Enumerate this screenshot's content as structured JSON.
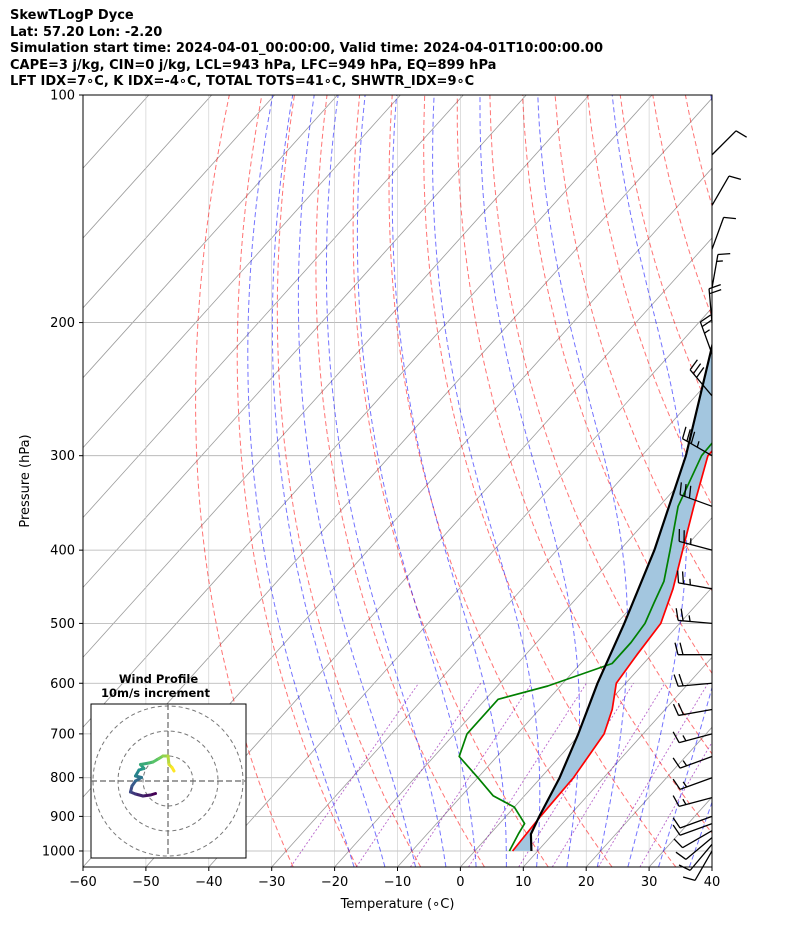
{
  "title": {
    "line1": "SkewTLogP Dyce",
    "line2": "Lat: 57.20   Lon: -2.20",
    "line3": "Simulation start time: 2024-04-01_00:00:00, Valid time: 2024-04-01T10:00:00.00",
    "line4": "CAPE=3 j/kg, CIN=0 j/kg, LCL=943 hPa, LFC=949 hPa, EQ=899 hPa",
    "line5": "LFT IDX=7∘C, K IDX=-4∘C, TOTAL TOTS=41∘C, SHWTR_IDX=9∘C"
  },
  "chart_data": {
    "type": "line",
    "subtype": "skew-T log-P",
    "xlabel": "Temperature (∘C)",
    "ylabel": "Pressure (hPa)",
    "xlim": [
      -60,
      40
    ],
    "ylim": [
      1050,
      100
    ],
    "y_scale": "log",
    "x_ticks": [
      "−60",
      "−50",
      "−40",
      "−30",
      "−20",
      "−10",
      "0",
      "10",
      "20",
      "30",
      "40"
    ],
    "x_tick_values": [
      -60,
      -50,
      -40,
      -30,
      -20,
      -10,
      0,
      10,
      20,
      30,
      40
    ],
    "y_ticks": [
      1000,
      900,
      800,
      700,
      600,
      500,
      400,
      300,
      200,
      100
    ],
    "grid": true,
    "background_lines": {
      "dry_adiabats_color": "#ff0000",
      "moist_adiabats_color": "#0000ff",
      "mixing_ratio_color": "#8800aa",
      "isotherm_color": "#888888"
    },
    "series": [
      {
        "role": "temperature",
        "color": "#ff0000",
        "points": [
          [
            6,
            1000
          ],
          [
            5.5,
            900
          ],
          [
            5.2,
            800
          ],
          [
            3.8,
            700
          ],
          [
            1.6,
            650
          ],
          [
            -1.5,
            600
          ],
          [
            -2.3,
            550
          ],
          [
            -3.0,
            500
          ],
          [
            -6.0,
            450
          ],
          [
            -10.0,
            400
          ],
          [
            -14.5,
            350
          ],
          [
            -19.5,
            300
          ],
          [
            -19.5,
            270
          ],
          [
            -16.5,
            250
          ],
          [
            -12,
            235
          ],
          [
            -8.5,
            220
          ],
          [
            -5,
            200
          ],
          [
            -2,
            185
          ],
          [
            3.5,
            170
          ],
          [
            8,
            155
          ],
          [
            13,
            135
          ],
          [
            17,
            120
          ],
          [
            20.5,
            100
          ]
        ]
      },
      {
        "role": "dewpoint",
        "color": "#008000",
        "points": [
          [
            5.5,
            1000
          ],
          [
            4.5,
            950
          ],
          [
            4.0,
            920
          ],
          [
            0,
            875
          ],
          [
            -5,
            845
          ],
          [
            -10,
            800
          ],
          [
            -16,
            750
          ],
          [
            -18,
            700
          ],
          [
            -18,
            630
          ],
          [
            -12,
            605
          ],
          [
            -5,
            565
          ],
          [
            -5,
            530
          ],
          [
            -5.5,
            500
          ],
          [
            -7,
            470
          ],
          [
            -8.5,
            440
          ],
          [
            -12,
            400
          ],
          [
            -17,
            350
          ],
          [
            -20.5,
            300
          ],
          [
            -21,
            260
          ],
          [
            -19.5,
            240
          ],
          [
            -20,
            220
          ],
          [
            -21.5,
            200
          ],
          [
            -20,
            185
          ],
          [
            -15,
            165
          ],
          [
            -8,
            140
          ],
          [
            -3,
            120
          ],
          [
            1,
            100
          ]
        ]
      },
      {
        "role": "parcel",
        "color": "#000000",
        "points": [
          [
            9,
            1000
          ],
          [
            6.5,
            950
          ],
          [
            5.3,
            900
          ],
          [
            3,
            800
          ],
          [
            -0.3,
            700
          ],
          [
            -4.5,
            600
          ],
          [
            -8.8,
            500
          ],
          [
            -14.5,
            400
          ],
          [
            -23,
            300
          ],
          [
            -37,
            200
          ],
          [
            -50.5,
            150
          ],
          [
            -65,
            100
          ]
        ]
      }
    ],
    "shaded_region": {
      "between": [
        "temperature",
        "parcel"
      ],
      "color": "#a3c6df"
    },
    "wind_barbs": {
      "pressures": [
        1000,
        980,
        960,
        940,
        920,
        900,
        850,
        800,
        750,
        700,
        650,
        600,
        550,
        500,
        450,
        400,
        350,
        300,
        250,
        220,
        200,
        180,
        160,
        140,
        120
      ],
      "speeds_kt": [
        10,
        10,
        10,
        10,
        10,
        10,
        15,
        15,
        15,
        15,
        20,
        20,
        20,
        25,
        25,
        25,
        30,
        35,
        30,
        25,
        20,
        15,
        10,
        10,
        10
      ],
      "dirs_deg": [
        210,
        220,
        230,
        240,
        250,
        250,
        255,
        250,
        250,
        255,
        260,
        265,
        270,
        275,
        280,
        285,
        290,
        300,
        320,
        340,
        355,
        10,
        20,
        30,
        45
      ]
    },
    "hodograph": {
      "title_line1": "Wind Profile",
      "title_line2": "10m/s increment",
      "ring_increment_ms": 10,
      "rings": 3,
      "colormap": [
        "#440154",
        "#3b528b",
        "#21918c",
        "#5ec962",
        "#fde725"
      ],
      "points_ms": [
        [
          -2.5,
          -2.5
        ],
        [
          -3.5,
          -2.8
        ],
        [
          -5,
          -3
        ],
        [
          -6.5,
          -2.6
        ],
        [
          -7.5,
          -2.2
        ],
        [
          -7.2,
          -1
        ],
        [
          -6.5,
          0
        ],
        [
          -5.3,
          0.7
        ],
        [
          -6.5,
          1
        ],
        [
          -5.8,
          2.2
        ],
        [
          -4.8,
          2.5
        ],
        [
          -5.5,
          3.3
        ],
        [
          -3.8,
          3.6
        ],
        [
          -3,
          3.8
        ],
        [
          -1.8,
          4.5
        ],
        [
          -1,
          5
        ],
        [
          0,
          5
        ],
        [
          0.2,
          3.3
        ],
        [
          0.8,
          2.7
        ],
        [
          1.2,
          2
        ]
      ]
    }
  }
}
